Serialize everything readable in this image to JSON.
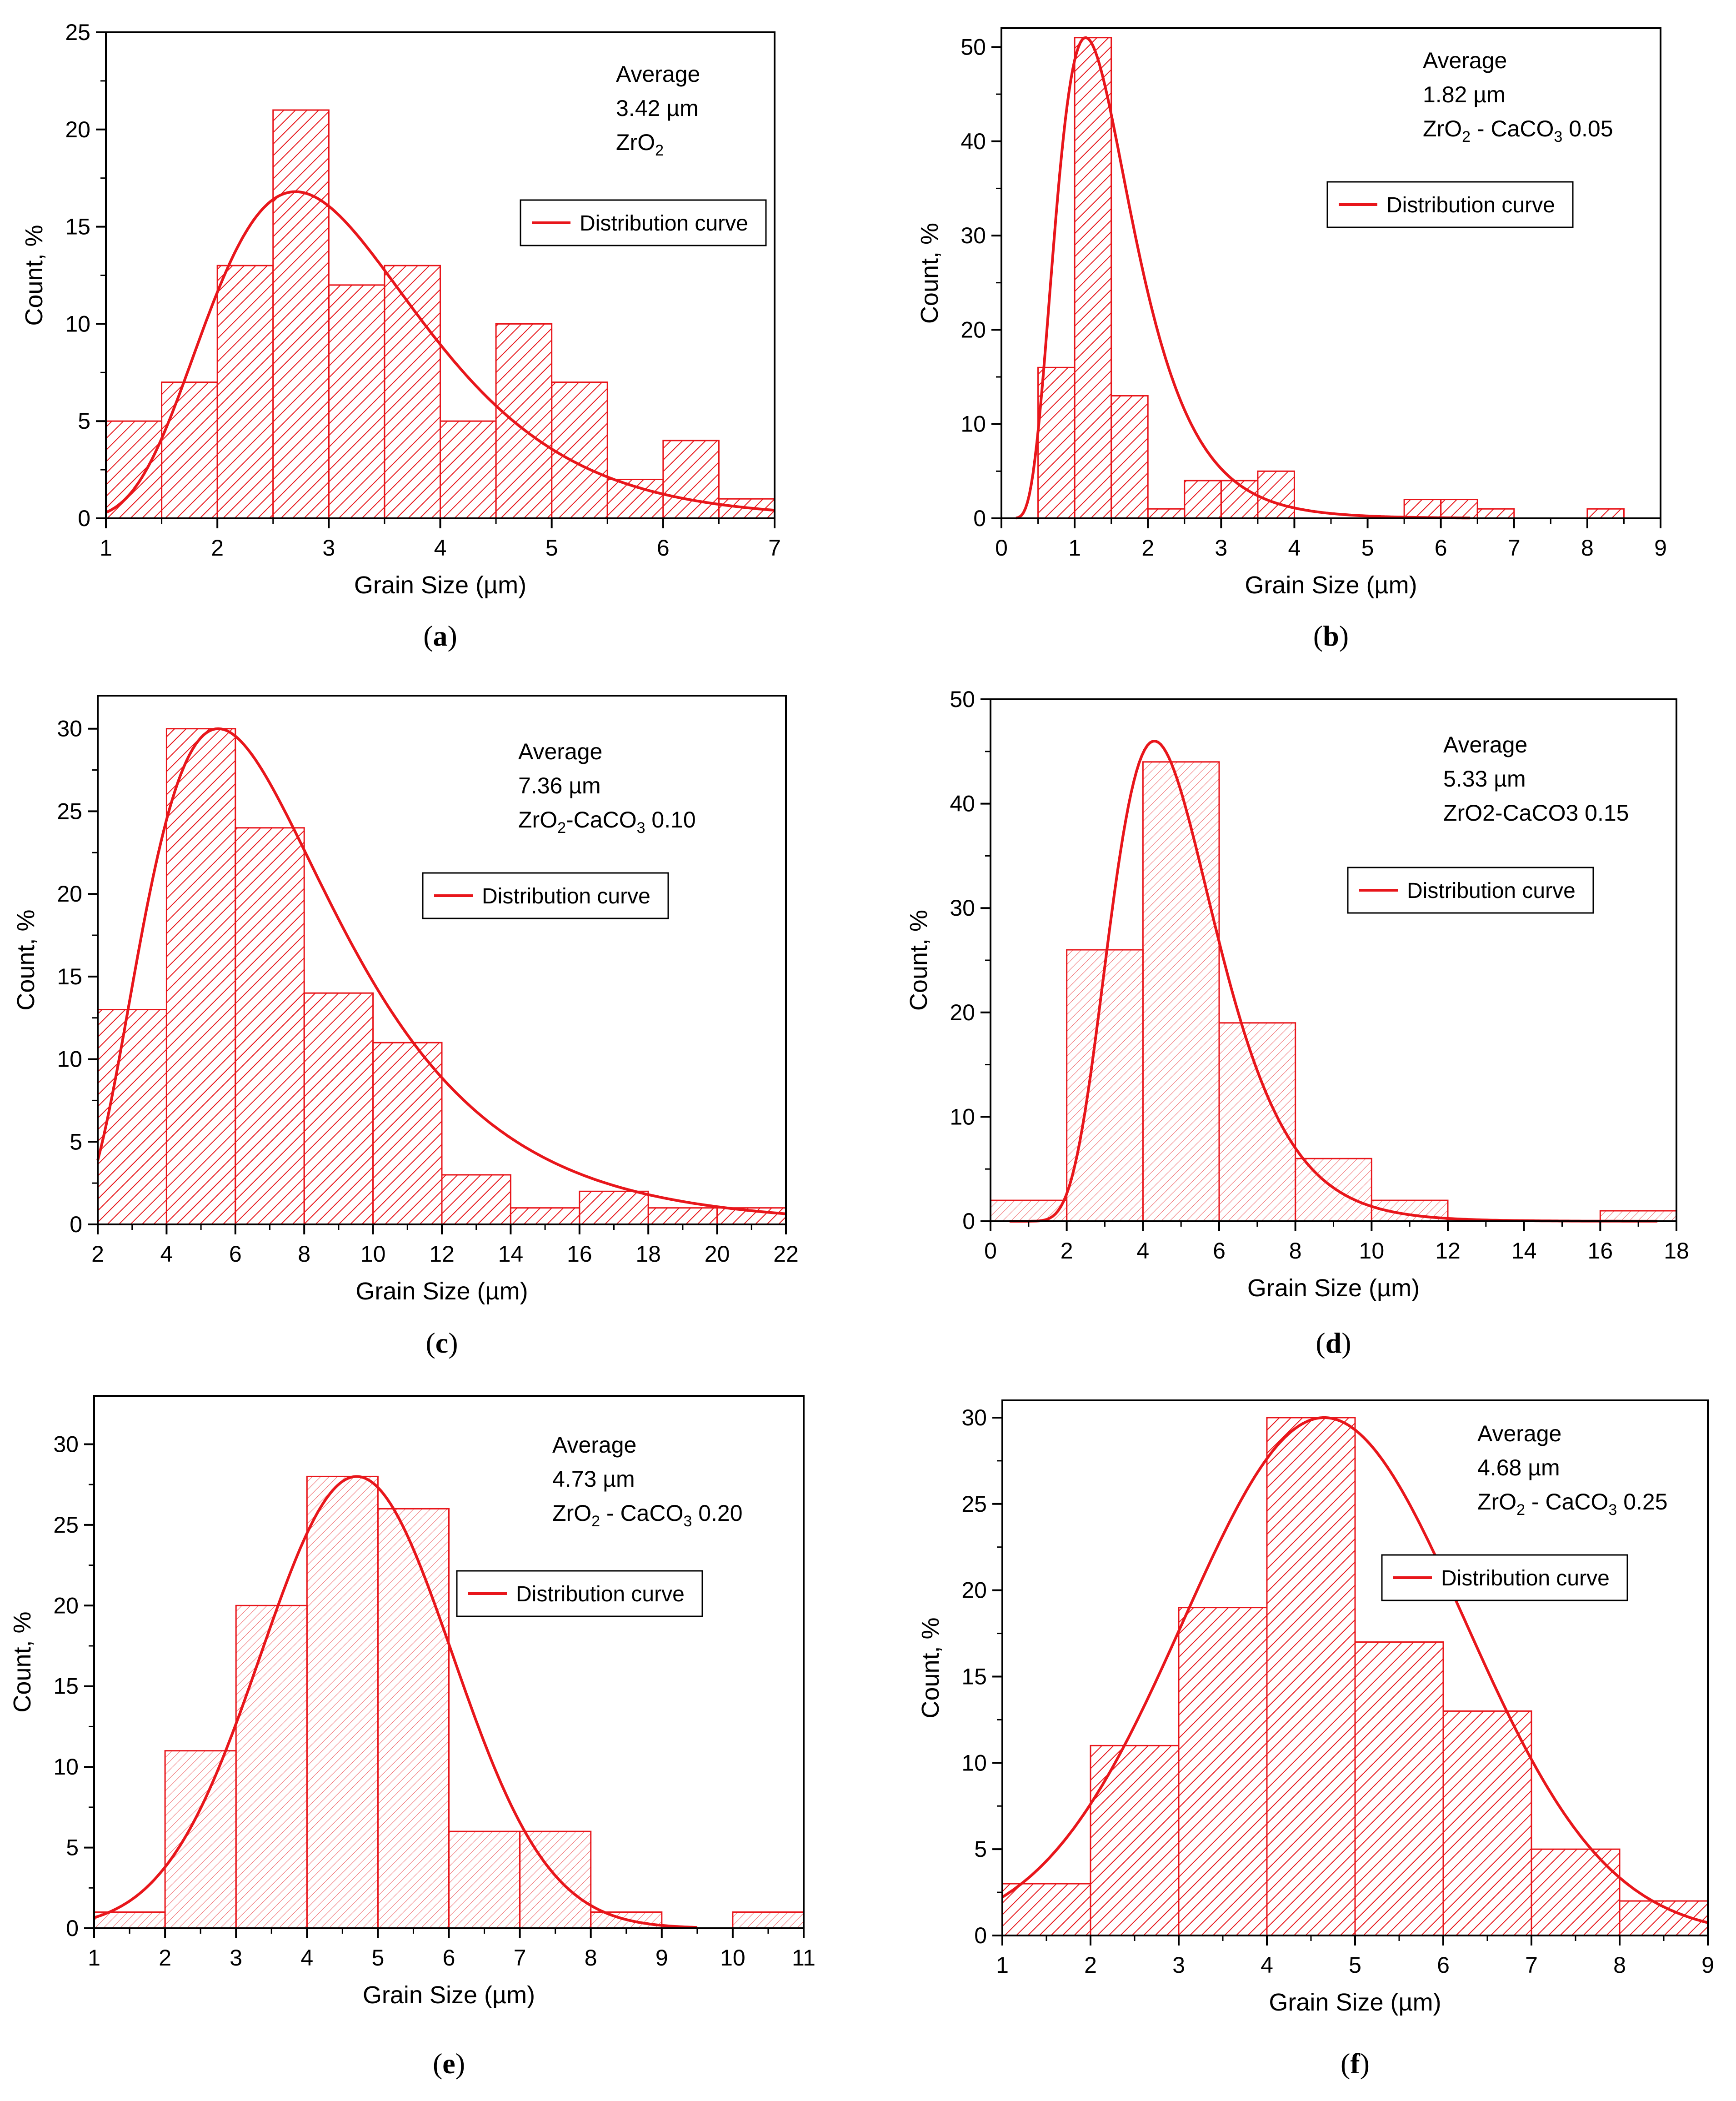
{
  "chart_data": [
    {
      "type": "bar",
      "panel": "a",
      "xlabel": "Grain Size (µm)",
      "ylabel": "Count, %",
      "xlim": [
        1,
        7
      ],
      "ylim": [
        0,
        25
      ],
      "xticks": [
        1,
        2,
        3,
        4,
        5,
        6,
        7
      ],
      "yticks": [
        0,
        5,
        10,
        15,
        20,
        25
      ],
      "bins": [
        {
          "x0": 1,
          "x1": 1.5,
          "value": 5
        },
        {
          "x0": 1.5,
          "x1": 2,
          "value": 7
        },
        {
          "x0": 2,
          "x1": 2.5,
          "value": 13
        },
        {
          "x0": 2.5,
          "x1": 3,
          "value": 21
        },
        {
          "x0": 3,
          "x1": 3.5,
          "value": 12
        },
        {
          "x0": 3.5,
          "x1": 4,
          "value": 13
        },
        {
          "x0": 4,
          "x1": 4.5,
          "value": 5
        },
        {
          "x0": 4.5,
          "x1": 5,
          "value": 10
        },
        {
          "x0": 5,
          "x1": 5.5,
          "value": 7
        },
        {
          "x0": 5.5,
          "x1": 6,
          "value": 2
        },
        {
          "x0": 6,
          "x1": 6.5,
          "value": 4
        },
        {
          "x0": 6.5,
          "x1": 7,
          "value": 1
        }
      ],
      "curve": {
        "model": "lognormal",
        "peak_x": 2.7,
        "peak_y": 16.8,
        "sigma": 0.35,
        "x_range": [
          1,
          7
        ]
      },
      "legend": "Distribution curve",
      "legend_position": "top-right",
      "annotation": {
        "line1": "Average",
        "value": "3.42 µm",
        "material": "ZrO",
        "material_sub": "2",
        "material_tail": ""
      },
      "fill": "dense",
      "color": "#e8161b"
    },
    {
      "type": "bar",
      "panel": "b",
      "xlabel": "Grain Size (µm)",
      "ylabel": "Count, %",
      "xlim": [
        0,
        9
      ],
      "ylim": [
        0,
        52
      ],
      "xticks": [
        0,
        1,
        2,
        3,
        4,
        5,
        6,
        7,
        8,
        9
      ],
      "yticks": [
        0,
        10,
        20,
        30,
        40,
        50
      ],
      "bins": [
        {
          "x0": 0.5,
          "x1": 1,
          "value": 16
        },
        {
          "x0": 1,
          "x1": 1.5,
          "value": 51
        },
        {
          "x0": 1.5,
          "x1": 2,
          "value": 13
        },
        {
          "x0": 2,
          "x1": 2.5,
          "value": 1
        },
        {
          "x0": 2.5,
          "x1": 3,
          "value": 4
        },
        {
          "x0": 3,
          "x1": 3.5,
          "value": 4
        },
        {
          "x0": 3.5,
          "x1": 4,
          "value": 5
        },
        {
          "x0": 5.5,
          "x1": 6,
          "value": 2
        },
        {
          "x0": 6,
          "x1": 6.5,
          "value": 2
        },
        {
          "x0": 6.5,
          "x1": 7,
          "value": 1
        },
        {
          "x0": 8,
          "x1": 8.5,
          "value": 1
        }
      ],
      "curve": {
        "model": "lognormal",
        "peak_x": 1.15,
        "peak_y": 51,
        "sigma": 0.45,
        "x_range": [
          0.2,
          6.4
        ]
      },
      "legend": "Distribution curve",
      "legend_position": "top-right",
      "annotation": {
        "line1": "Average",
        "value": "1.82 µm",
        "material": "ZrO",
        "material_sub": "2",
        "material_tail": " - CaCO",
        "material_sub2": "3",
        "material_end": " 0.05"
      },
      "fill": "dense",
      "color": "#e8161b"
    },
    {
      "type": "bar",
      "panel": "c",
      "xlabel": "Grain Size (µm)",
      "ylabel": "Count, %",
      "xlim": [
        2,
        22
      ],
      "ylim": [
        0,
        32
      ],
      "xticks": [
        2,
        4,
        6,
        8,
        10,
        12,
        14,
        16,
        18,
        20,
        22
      ],
      "yticks": [
        0,
        5,
        10,
        15,
        20,
        25,
        30
      ],
      "bins": [
        {
          "x0": 2,
          "x1": 4,
          "value": 13
        },
        {
          "x0": 4,
          "x1": 6,
          "value": 30
        },
        {
          "x0": 6,
          "x1": 8,
          "value": 24
        },
        {
          "x0": 8,
          "x1": 10,
          "value": 14
        },
        {
          "x0": 10,
          "x1": 12,
          "value": 11
        },
        {
          "x0": 12,
          "x1": 14,
          "value": 3
        },
        {
          "x0": 14,
          "x1": 16,
          "value": 1
        },
        {
          "x0": 16,
          "x1": 18,
          "value": 2
        },
        {
          "x0": 18,
          "x1": 20,
          "value": 1
        },
        {
          "x0": 20,
          "x1": 22,
          "value": 1
        }
      ],
      "curve": {
        "model": "lognormal",
        "peak_x": 5.5,
        "peak_y": 30,
        "sigma": 0.5,
        "x_range": [
          2,
          22
        ]
      },
      "legend": "Distribution curve",
      "legend_position": "top-right",
      "annotation": {
        "line1": "Average",
        "value": "7.36 µm",
        "material": "ZrO",
        "material_sub": "2",
        "material_tail": "-CaCO",
        "material_sub2": "3",
        "material_end": " 0.10"
      },
      "fill": "dense",
      "color": "#e8161b"
    },
    {
      "type": "bar",
      "panel": "d",
      "xlabel": "Grain Size (µm)",
      "ylabel": "Count, %",
      "xlim": [
        0,
        18
      ],
      "ylim": [
        0,
        50
      ],
      "xticks": [
        0,
        2,
        4,
        6,
        8,
        10,
        12,
        14,
        16,
        18
      ],
      "yticks": [
        0,
        10,
        20,
        30,
        40,
        50
      ],
      "bins": [
        {
          "x0": 0,
          "x1": 2,
          "value": 2
        },
        {
          "x0": 2,
          "x1": 4,
          "value": 26
        },
        {
          "x0": 4,
          "x1": 6,
          "value": 44
        },
        {
          "x0": 6,
          "x1": 8,
          "value": 19
        },
        {
          "x0": 8,
          "x1": 10,
          "value": 6
        },
        {
          "x0": 10,
          "x1": 12,
          "value": 2
        },
        {
          "x0": 16,
          "x1": 18,
          "value": 1
        }
      ],
      "curve": {
        "model": "lognormal",
        "peak_x": 4.3,
        "peak_y": 46,
        "sigma": 0.32,
        "x_range": [
          0.5,
          17.5
        ]
      },
      "legend": "Distribution curve",
      "legend_position": "top-right",
      "annotation": {
        "line1": "Average",
        "value": "5.33 µm",
        "material": "ZrO2-CaCO3 0.15"
      },
      "fill": "light",
      "color": "#e8161b"
    },
    {
      "type": "bar",
      "panel": "e",
      "xlabel": "Grain Size (µm)",
      "ylabel": "Count, %",
      "xlim": [
        1,
        11
      ],
      "ylim": [
        0,
        33
      ],
      "xticks": [
        1,
        2,
        3,
        4,
        5,
        6,
        7,
        8,
        9,
        10,
        11
      ],
      "yticks": [
        0,
        5,
        10,
        15,
        20,
        25,
        30
      ],
      "bins": [
        {
          "x0": 1,
          "x1": 2,
          "value": 1
        },
        {
          "x0": 2,
          "x1": 3,
          "value": 11
        },
        {
          "x0": 3,
          "x1": 4,
          "value": 20
        },
        {
          "x0": 4,
          "x1": 5,
          "value": 28
        },
        {
          "x0": 5,
          "x1": 6,
          "value": 26
        },
        {
          "x0": 6,
          "x1": 7,
          "value": 6
        },
        {
          "x0": 7,
          "x1": 8,
          "value": 6
        },
        {
          "x0": 8,
          "x1": 9,
          "value": 1
        },
        {
          "x0": 10,
          "x1": 11,
          "value": 1
        }
      ],
      "curve": {
        "model": "gaussian",
        "peak_x": 4.7,
        "peak_y": 28,
        "sigma": 1.35,
        "x_range": [
          1,
          9.5
        ]
      },
      "legend": "Distribution curve",
      "legend_position": "top-right",
      "annotation": {
        "line1": "Average",
        "value": "4.73 µm",
        "material": "ZrO",
        "material_sub": "2",
        "material_tail": " - CaCO",
        "material_sub2": "3",
        "material_end": " 0.20"
      },
      "fill": "light",
      "color": "#e8161b"
    },
    {
      "type": "bar",
      "panel": "f",
      "xlabel": "Grain Size (µm)",
      "ylabel": "Count, %",
      "xlim": [
        1,
        9
      ],
      "ylim": [
        0,
        31
      ],
      "xticks": [
        1,
        2,
        3,
        4,
        5,
        6,
        7,
        8,
        9
      ],
      "yticks": [
        0,
        5,
        10,
        15,
        20,
        25,
        30
      ],
      "bins": [
        {
          "x0": 1,
          "x1": 2,
          "value": 3
        },
        {
          "x0": 2,
          "x1": 3,
          "value": 11
        },
        {
          "x0": 3,
          "x1": 4,
          "value": 19
        },
        {
          "x0": 4,
          "x1": 5,
          "value": 30
        },
        {
          "x0": 5,
          "x1": 6,
          "value": 17
        },
        {
          "x0": 6,
          "x1": 7,
          "value": 13
        },
        {
          "x0": 7,
          "x1": 8,
          "value": 5
        },
        {
          "x0": 8,
          "x1": 9,
          "value": 2
        }
      ],
      "curve": {
        "model": "gaussian",
        "peak_x": 4.65,
        "peak_y": 30,
        "sigma": 1.6,
        "x_range": [
          1,
          9
        ]
      },
      "legend": "Distribution curve",
      "legend_position": "top-right",
      "annotation": {
        "line1": "Average",
        "value": "4.68 µm",
        "material": "ZrO",
        "material_sub": "2",
        "material_tail": " - CaCO",
        "material_sub2": "3",
        "material_end": " 0.25"
      },
      "fill": "dense",
      "color": "#e8161b"
    }
  ]
}
